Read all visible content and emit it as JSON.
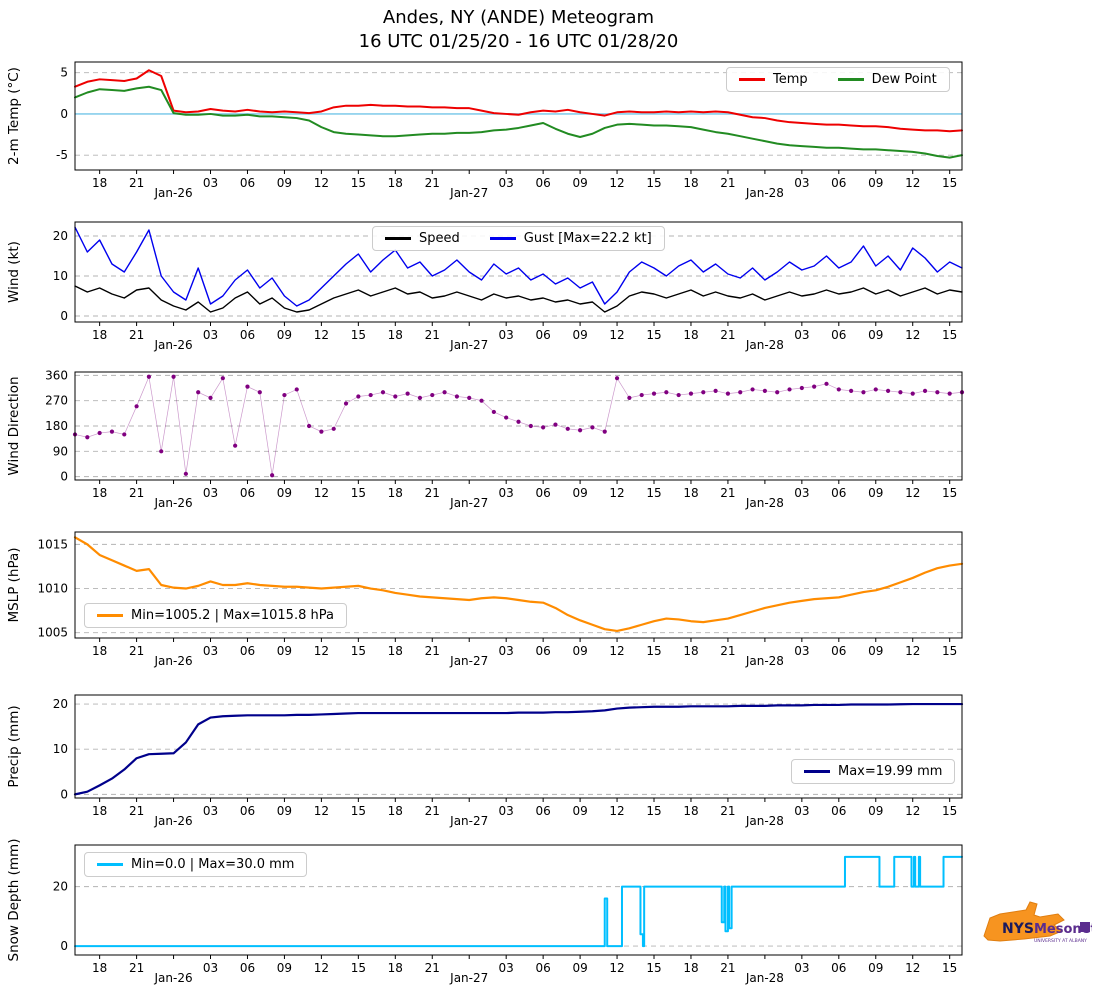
{
  "title": {
    "line1": "Andes, NY (ANDE) Meteogram",
    "line2": "16 UTC 01/25/20 - 16 UTC 01/28/20"
  },
  "logo": {
    "nys": "NYS",
    "mesonet": "Mesonet",
    "tagline": "UNIVERSITY AT ALBANY"
  },
  "chart_data": {
    "type": "line",
    "x_hours": 72,
    "x_axis": {
      "unit": "hours since 16 UTC 01/25/20",
      "range": [
        0,
        72
      ],
      "tick_interval_hours": 3
    },
    "grid": "horizontal-dashed",
    "colors": {
      "temp": "#ee0000",
      "dew": "#228b22",
      "speed": "#000000",
      "gust": "#0000ee",
      "wdir": "#800080",
      "mslp": "#ff8c00",
      "precip": "#00008b",
      "snow": "#00bfff",
      "zero_line": "#87ceeb",
      "grid": "#b3b3b3"
    },
    "xticks": [
      {
        "h": 2,
        "label": "18"
      },
      {
        "h": 5,
        "label": "21"
      },
      {
        "h": 8,
        "label": "Jan-26"
      },
      {
        "h": 11,
        "label": "03"
      },
      {
        "h": 14,
        "label": "06"
      },
      {
        "h": 17,
        "label": "09"
      },
      {
        "h": 20,
        "label": "12"
      },
      {
        "h": 23,
        "label": "15"
      },
      {
        "h": 26,
        "label": "18"
      },
      {
        "h": 29,
        "label": "21"
      },
      {
        "h": 32,
        "label": "Jan-27"
      },
      {
        "h": 35,
        "label": "03"
      },
      {
        "h": 38,
        "label": "06"
      },
      {
        "h": 41,
        "label": "09"
      },
      {
        "h": 44,
        "label": "12"
      },
      {
        "h": 47,
        "label": "15"
      },
      {
        "h": 50,
        "label": "18"
      },
      {
        "h": 53,
        "label": "21"
      },
      {
        "h": 56,
        "label": "Jan-28"
      },
      {
        "h": 59,
        "label": "03"
      },
      {
        "h": 62,
        "label": "06"
      },
      {
        "h": 65,
        "label": "09"
      },
      {
        "h": 68,
        "label": "12"
      },
      {
        "h": 71,
        "label": "15"
      }
    ],
    "panels": [
      {
        "id": "temperature",
        "ylabel": "2-m Temp (°C)",
        "ylim": [
          -6.8,
          6.3
        ],
        "yticks": [
          -5,
          0,
          5
        ],
        "zero_line": true,
        "legend_position": "top-right",
        "series": [
          {
            "id": "temp",
            "label": "Temp",
            "type": "line",
            "color": "#ee0000",
            "lw": 2,
            "values": [
              3.3,
              3.9,
              4.2,
              4.1,
              4.0,
              4.3,
              5.3,
              4.6,
              0.4,
              0.2,
              0.3,
              0.6,
              0.4,
              0.3,
              0.5,
              0.3,
              0.2,
              0.3,
              0.2,
              0.1,
              0.3,
              0.8,
              1.0,
              1.0,
              1.1,
              1.0,
              1.0,
              0.9,
              0.9,
              0.8,
              0.8,
              0.7,
              0.7,
              0.4,
              0.1,
              0.0,
              -0.1,
              0.2,
              0.4,
              0.3,
              0.5,
              0.2,
              0.0,
              -0.2,
              0.2,
              0.3,
              0.2,
              0.2,
              0.3,
              0.2,
              0.3,
              0.2,
              0.3,
              0.2,
              -0.1,
              -0.4,
              -0.5,
              -0.8,
              -1.0,
              -1.1,
              -1.2,
              -1.3,
              -1.3,
              -1.4,
              -1.5,
              -1.5,
              -1.6,
              -1.8,
              -1.9,
              -2.0,
              -2.0,
              -2.1,
              -2.0
            ]
          },
          {
            "id": "dewpoint",
            "label": "Dew Point",
            "type": "line",
            "color": "#228b22",
            "lw": 2,
            "values": [
              2.0,
              2.6,
              3.0,
              2.9,
              2.8,
              3.1,
              3.3,
              2.9,
              0.1,
              -0.1,
              -0.1,
              0.0,
              -0.2,
              -0.2,
              -0.1,
              -0.3,
              -0.3,
              -0.4,
              -0.5,
              -0.8,
              -1.6,
              -2.2,
              -2.4,
              -2.5,
              -2.6,
              -2.7,
              -2.7,
              -2.6,
              -2.5,
              -2.4,
              -2.4,
              -2.3,
              -2.3,
              -2.2,
              -2.0,
              -1.9,
              -1.7,
              -1.4,
              -1.1,
              -1.8,
              -2.4,
              -2.8,
              -2.4,
              -1.7,
              -1.3,
              -1.2,
              -1.3,
              -1.4,
              -1.4,
              -1.5,
              -1.6,
              -1.9,
              -2.2,
              -2.4,
              -2.7,
              -3.0,
              -3.3,
              -3.6,
              -3.8,
              -3.9,
              -4.0,
              -4.1,
              -4.1,
              -4.2,
              -4.3,
              -4.3,
              -4.4,
              -4.5,
              -4.6,
              -4.8,
              -5.1,
              -5.3,
              -5.0
            ]
          }
        ]
      },
      {
        "id": "wind",
        "ylabel": "Wind (kt)",
        "ylim": [
          -1.5,
          23.5
        ],
        "yticks": [
          0,
          10,
          20
        ],
        "legend_position": "top-center",
        "series": [
          {
            "id": "wind-speed",
            "label": "Speed",
            "type": "line",
            "color": "#000000",
            "lw": 1.4,
            "values": [
              7.5,
              6.0,
              7.0,
              5.5,
              4.5,
              6.5,
              7.0,
              4.0,
              2.5,
              1.5,
              3.5,
              1.0,
              2.0,
              4.5,
              6.0,
              3.0,
              4.5,
              2.0,
              1.0,
              1.5,
              3.0,
              4.5,
              5.5,
              6.5,
              5.0,
              6.0,
              7.0,
              5.5,
              6.0,
              4.5,
              5.0,
              6.0,
              5.0,
              4.0,
              5.5,
              4.5,
              5.0,
              4.0,
              4.5,
              3.5,
              4.0,
              3.0,
              3.5,
              1.0,
              2.5,
              5.0,
              6.0,
              5.5,
              4.5,
              5.5,
              6.5,
              5.0,
              6.0,
              5.0,
              4.5,
              5.5,
              4.0,
              5.0,
              6.0,
              5.0,
              5.5,
              6.5,
              5.5,
              6.0,
              7.0,
              5.5,
              6.5,
              5.0,
              6.0,
              7.0,
              5.5,
              6.5,
              6.0
            ]
          },
          {
            "id": "wind-gust",
            "label": "Gust [Max=22.2 kt]",
            "type": "line",
            "color": "#0000ee",
            "lw": 1.4,
            "values": [
              22.2,
              16.0,
              19.0,
              13.0,
              11.0,
              16.0,
              21.5,
              10.0,
              6.0,
              4.0,
              12.0,
              3.0,
              5.0,
              9.0,
              11.5,
              7.0,
              9.5,
              5.0,
              2.5,
              4.0,
              7.0,
              10.0,
              13.0,
              15.5,
              11.0,
              14.0,
              16.5,
              12.0,
              13.5,
              10.0,
              11.5,
              14.0,
              11.0,
              9.0,
              13.0,
              10.5,
              12.0,
              9.0,
              10.5,
              8.0,
              9.5,
              7.0,
              8.5,
              3.0,
              6.0,
              11.0,
              13.5,
              12.0,
              10.0,
              12.5,
              14.0,
              11.0,
              13.0,
              10.5,
              9.5,
              12.0,
              9.0,
              11.0,
              13.5,
              11.5,
              12.5,
              15.0,
              12.0,
              13.5,
              17.5,
              12.5,
              15.0,
              11.5,
              17.0,
              14.5,
              11.0,
              13.5,
              12.0
            ]
          }
        ]
      },
      {
        "id": "wind-direction",
        "ylabel": "Wind Direction",
        "ylim": [
          -12,
          372
        ],
        "yticks": [
          0,
          90,
          180,
          270,
          360
        ],
        "series": [
          {
            "id": "wdir",
            "label": "Wind Direction",
            "type": "scatter",
            "color": "#800080",
            "values": [
              150,
              140,
              155,
              160,
              150,
              250,
              355,
              90,
              355,
              10,
              300,
              280,
              350,
              110,
              320,
              300,
              5,
              290,
              310,
              180,
              160,
              170,
              260,
              285,
              290,
              300,
              285,
              295,
              280,
              290,
              300,
              285,
              280,
              270,
              230,
              210,
              195,
              180,
              175,
              185,
              170,
              165,
              175,
              160,
              350,
              280,
              290,
              295,
              300,
              290,
              295,
              300,
              305,
              295,
              300,
              310,
              305,
              300,
              310,
              315,
              320,
              330,
              310,
              305,
              300,
              310,
              305,
              300,
              295,
              305,
              300,
              295,
              300
            ]
          }
        ]
      },
      {
        "id": "mslp",
        "ylabel": "MSLP (hPa)",
        "ylim": [
          1004.4,
          1016.4
        ],
        "yticks": [
          1005,
          1010,
          1015
        ],
        "legend_position": "bottom-left",
        "series": [
          {
            "id": "mslp",
            "label": "Min=1005.2 | Max=1015.8 hPa",
            "type": "line",
            "color": "#ff8c00",
            "lw": 2.2,
            "min": 1005.2,
            "max": 1015.8,
            "values": [
              1015.8,
              1015.0,
              1013.8,
              1013.2,
              1012.6,
              1012.0,
              1012.2,
              1010.4,
              1010.1,
              1010.0,
              1010.3,
              1010.8,
              1010.4,
              1010.4,
              1010.6,
              1010.4,
              1010.3,
              1010.2,
              1010.2,
              1010.1,
              1010.0,
              1010.1,
              1010.2,
              1010.3,
              1010.0,
              1009.8,
              1009.5,
              1009.3,
              1009.1,
              1009.0,
              1008.9,
              1008.8,
              1008.7,
              1008.9,
              1009.0,
              1008.9,
              1008.7,
              1008.5,
              1008.4,
              1007.8,
              1007.0,
              1006.4,
              1005.9,
              1005.4,
              1005.2,
              1005.5,
              1005.9,
              1006.3,
              1006.6,
              1006.5,
              1006.3,
              1006.2,
              1006.4,
              1006.6,
              1007.0,
              1007.4,
              1007.8,
              1008.1,
              1008.4,
              1008.6,
              1008.8,
              1008.9,
              1009.0,
              1009.3,
              1009.6,
              1009.8,
              1010.2,
              1010.7,
              1011.2,
              1011.8,
              1012.3,
              1012.6,
              1012.8
            ]
          }
        ]
      },
      {
        "id": "precip",
        "ylabel": "Precip (mm)",
        "ylim": [
          -0.8,
          22
        ],
        "yticks": [
          0,
          10,
          20
        ],
        "legend_position": "bottom-right",
        "series": [
          {
            "id": "precip",
            "label": "Max=19.99 mm",
            "type": "line",
            "color": "#00008b",
            "lw": 2.2,
            "max": 19.99,
            "values": [
              0.0,
              0.6,
              2.0,
              3.5,
              5.5,
              8.0,
              8.9,
              9.0,
              9.1,
              11.5,
              15.5,
              17.0,
              17.3,
              17.4,
              17.5,
              17.5,
              17.5,
              17.5,
              17.6,
              17.6,
              17.7,
              17.8,
              17.9,
              18.0,
              18.0,
              18.0,
              18.0,
              18.0,
              18.0,
              18.0,
              18.0,
              18.0,
              18.0,
              18.0,
              18.0,
              18.0,
              18.1,
              18.1,
              18.1,
              18.2,
              18.2,
              18.3,
              18.4,
              18.6,
              19.0,
              19.2,
              19.3,
              19.4,
              19.4,
              19.4,
              19.5,
              19.5,
              19.5,
              19.5,
              19.6,
              19.6,
              19.6,
              19.7,
              19.7,
              19.7,
              19.8,
              19.8,
              19.8,
              19.9,
              19.9,
              19.9,
              19.9,
              19.95,
              19.99,
              19.99,
              19.99,
              19.99,
              19.99
            ]
          }
        ]
      },
      {
        "id": "snow-depth",
        "ylabel": "Snow Depth (mm)",
        "ylim": [
          -3,
          34
        ],
        "yticks": [
          0,
          20
        ],
        "legend_position": "top-left",
        "series": [
          {
            "id": "snow-depth",
            "label": "Min=0.0 | Max=30.0 mm",
            "type": "step",
            "color": "#00bfff",
            "lw": 2,
            "min": 0.0,
            "max": 30.0,
            "points": [
              [
                0,
                0
              ],
              [
                42.9,
                0
              ],
              [
                43.0,
                16
              ],
              [
                43.2,
                0
              ],
              [
                44.3,
                0
              ],
              [
                44.4,
                20
              ],
              [
                45.8,
                20
              ],
              [
                45.9,
                4
              ],
              [
                46.1,
                0
              ],
              [
                46.2,
                20
              ],
              [
                52.4,
                20
              ],
              [
                52.5,
                8
              ],
              [
                52.7,
                20
              ],
              [
                52.8,
                5
              ],
              [
                53.0,
                20
              ],
              [
                53.1,
                6
              ],
              [
                53.3,
                20
              ],
              [
                62.4,
                20
              ],
              [
                62.5,
                30
              ],
              [
                65.2,
                30
              ],
              [
                65.3,
                20
              ],
              [
                66.4,
                20
              ],
              [
                66.5,
                30
              ],
              [
                67.8,
                30
              ],
              [
                67.9,
                20
              ],
              [
                68.1,
                30
              ],
              [
                68.2,
                20
              ],
              [
                68.5,
                30
              ],
              [
                68.6,
                20
              ],
              [
                70.4,
                20
              ],
              [
                70.5,
                30
              ],
              [
                72,
                30
              ]
            ]
          }
        ]
      }
    ]
  }
}
